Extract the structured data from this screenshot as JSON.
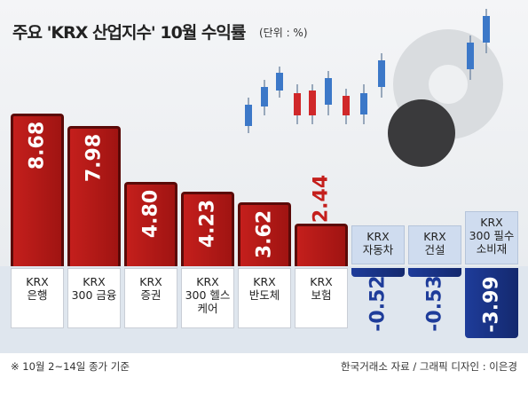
{
  "title": "주요 'KRX 산업지수' 10월 수익률",
  "subtitle": "(단위 : %)",
  "chart_data": {
    "type": "bar",
    "categories": [
      "KRX\n은행",
      "KRX\n300 금융",
      "KRX\n증권",
      "KRX\n300 헬스\n케어",
      "KRX\n반도체",
      "KRX\n보험",
      "KRX\n자동차",
      "KRX\n건설",
      "KRX\n300 필수\n소비재"
    ],
    "values": [
      8.68,
      7.98,
      4.8,
      4.23,
      3.62,
      2.44,
      -0.52,
      -0.53,
      -3.99
    ],
    "value_labels": [
      "8.68",
      "7.98",
      "4.80",
      "4.23",
      "3.62",
      "2.44",
      "-0.52",
      "-0.53",
      "-3.99"
    ],
    "colors": {
      "positive": "#c41f1c",
      "negative": "#1e3c9a"
    }
  },
  "footnote": "※ 10월 2~14일 종가 기준",
  "source": "한국거래소 자료 / 그래픽 디자인 : 이은경"
}
